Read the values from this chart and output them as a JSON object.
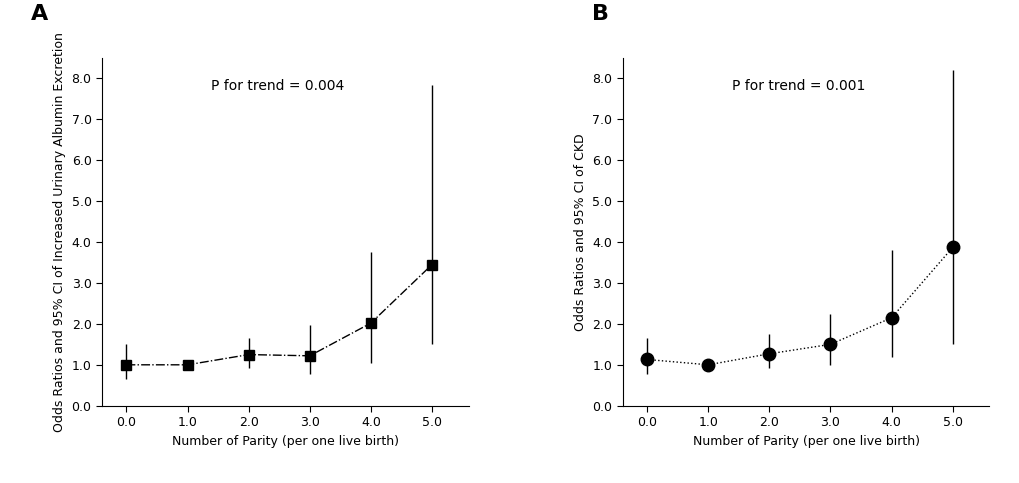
{
  "panel_A": {
    "label": "A",
    "x": [
      0.0,
      1.0,
      2.0,
      3.0,
      4.0,
      5.0
    ],
    "y": [
      1.0,
      1.0,
      1.25,
      1.22,
      2.02,
      3.45
    ],
    "ci_low": [
      0.65,
      0.95,
      0.93,
      0.78,
      1.05,
      1.5
    ],
    "ci_high": [
      1.5,
      1.1,
      1.65,
      1.97,
      3.75,
      7.85
    ],
    "ylabel": "Odds Ratios and 95% CI of Increased Urinary Albumin Excretion",
    "xlabel": "Number of Parity (per one live birth)",
    "pvalue_text": "P for trend = 0.004",
    "marker": "s",
    "linestyle": "-.",
    "markersize": 7
  },
  "panel_B": {
    "label": "B",
    "x": [
      0.0,
      1.0,
      2.0,
      3.0,
      4.0,
      5.0
    ],
    "y": [
      1.13,
      1.0,
      1.27,
      1.5,
      2.15,
      3.87
    ],
    "ci_low": [
      0.78,
      0.9,
      0.92,
      1.0,
      1.2,
      1.5
    ],
    "ci_high": [
      1.65,
      1.12,
      1.75,
      2.25,
      3.8,
      8.2
    ],
    "ylabel": "Odds Ratios and 95% CI of CKD",
    "xlabel": "Number of Parity (per one live birth)",
    "pvalue_text": "P for trend = 0.001",
    "marker": "o",
    "linestyle": ":",
    "markersize": 9
  },
  "ylim": [
    0.0,
    8.5
  ],
  "yticks": [
    0.0,
    1.0,
    2.0,
    3.0,
    4.0,
    5.0,
    6.0,
    7.0,
    8.0
  ],
  "xticks": [
    0.0,
    1.0,
    2.0,
    3.0,
    4.0,
    5.0
  ],
  "xlim": [
    -0.4,
    5.6
  ],
  "background_color": "#ffffff",
  "linecolor": "#000000",
  "markercolor": "#000000",
  "fontsize_label": 9,
  "fontsize_tick": 9,
  "fontsize_pvalue": 10,
  "fontsize_panel_label": 16
}
